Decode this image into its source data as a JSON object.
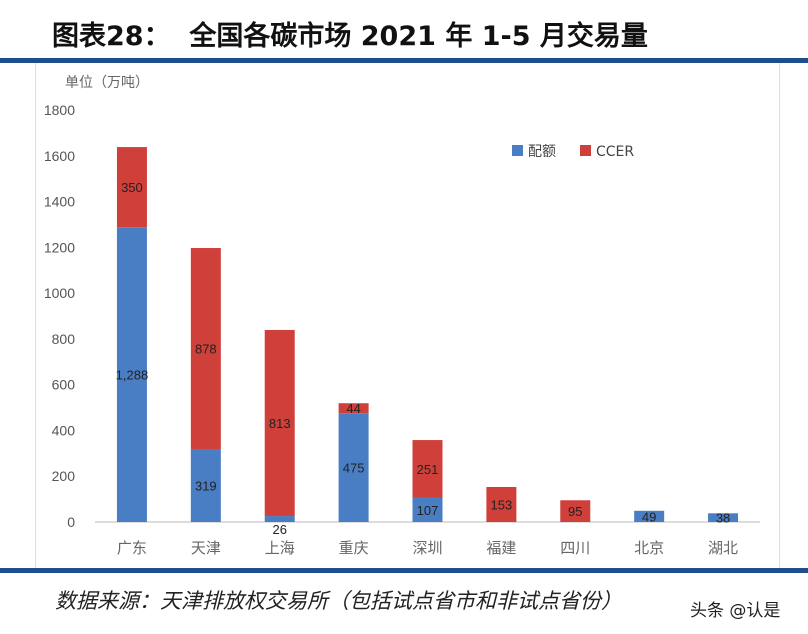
{
  "title": "图表28：  全国各碳市场 2021 年 1-5 月交易量",
  "source": "数据来源：天津排放权交易所（包括试点省市和非试点省份）",
  "watermark": "头条 @认是",
  "chart_data": {
    "type": "bar",
    "stacked": true,
    "ylabel": "单位（万吨）",
    "ylim": [
      0,
      1800
    ],
    "yticks": [
      0,
      200,
      400,
      600,
      800,
      1000,
      1200,
      1400,
      1600,
      1800
    ],
    "grid": false,
    "legend_position": "top-right",
    "categories": [
      "广东",
      "天津",
      "上海",
      "重庆",
      "深圳",
      "福建",
      "四川",
      "北京",
      "湖北"
    ],
    "series": [
      {
        "name": "配额",
        "color": "#4a7ec4",
        "values": [
          1288,
          319,
          26,
          475,
          107,
          0,
          0,
          49,
          38
        ]
      },
      {
        "name": "CCER",
        "color": "#d0403b",
        "values": [
          350,
          878,
          813,
          44,
          251,
          153,
          95,
          0,
          0
        ]
      }
    ]
  }
}
